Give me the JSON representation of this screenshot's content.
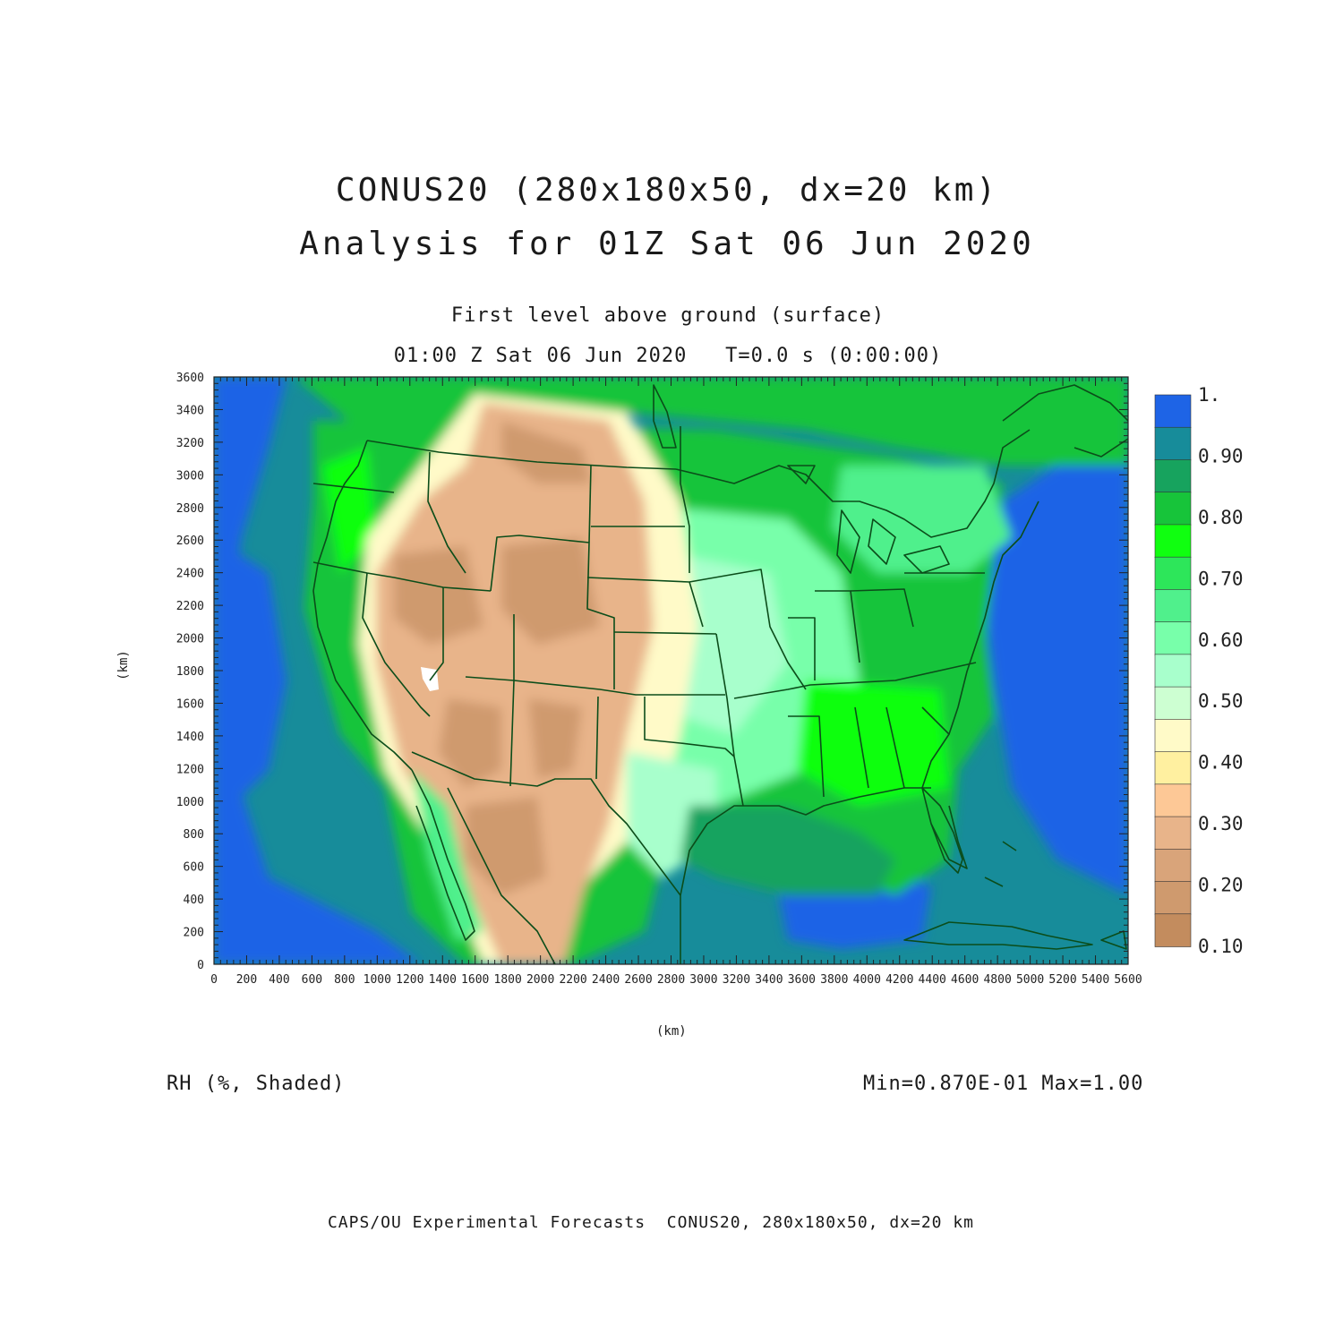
{
  "title": {
    "line1": "CONUS20 (280x180x50, dx=20 km)",
    "line2": "Analysis for 01Z Sat 06 Jun 2020"
  },
  "subtitle": {
    "level": "First level above ground (surface)",
    "time": "01:00 Z Sat 06 Jun 2020   T=0.0 s (0:00:00)"
  },
  "axes": {
    "x_label": "(km)",
    "y_label": "(km)",
    "x_ticks": [
      "0",
      "200",
      "400",
      "600",
      "800",
      "1000",
      "1200",
      "1400",
      "1600",
      "1800",
      "2000",
      "2200",
      "2400",
      "2600",
      "2800",
      "3000",
      "3200",
      "3400",
      "3600",
      "3800",
      "4000",
      "4200",
      "4400",
      "4600",
      "4800",
      "5000",
      "5200",
      "5400",
      "5600"
    ],
    "y_ticks": [
      "0",
      "200",
      "400",
      "600",
      "800",
      "1000",
      "1200",
      "1400",
      "1600",
      "1800",
      "2000",
      "2200",
      "2400",
      "2600",
      "2800",
      "3000",
      "3200",
      "3400",
      "3600"
    ],
    "xlim": [
      0,
      5600
    ],
    "ylim": [
      0,
      3600
    ]
  },
  "field": {
    "label": "RH (%, Shaded)",
    "stats": "Min=0.870E-01 Max=1.00"
  },
  "colorbar": {
    "labels": [
      "1.",
      "0.90",
      "0.80",
      "0.70",
      "0.60",
      "0.50",
      "0.40",
      "0.30",
      "0.20",
      "0.10"
    ],
    "colors_top_to_bottom": [
      "#1e64e6",
      "#178c9a",
      "#17a35e",
      "#17c43a",
      "#10ff10",
      "#2de65a",
      "#50f08c",
      "#78ffaa",
      "#a8ffcc",
      "#cdffd2",
      "#fffac8",
      "#fff0a0",
      "#fdc896",
      "#e8b48a",
      "#d9a47a",
      "#cf9a6e",
      "#c38c5e"
    ]
  },
  "footer": "CAPS/OU Experimental Forecasts  CONUS20, 280x180x50, dx=20 km",
  "colors": {
    "ocean": "#1e64e6",
    "deep_teal": "#178c9a",
    "dry_brown": "#d2a074",
    "boundary": "#0b4d1a"
  }
}
